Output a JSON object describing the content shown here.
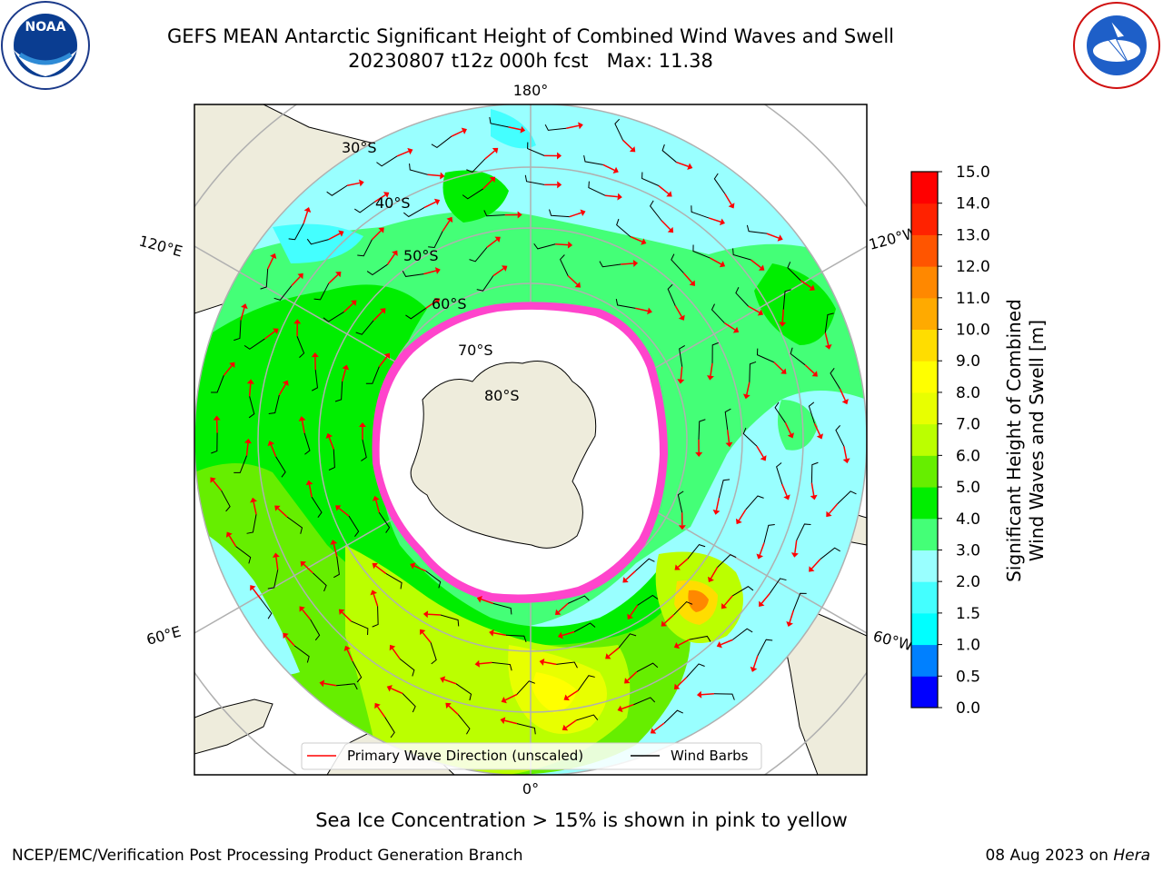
{
  "title": {
    "line1": "GEFS MEAN Antarctic Significant Height of Combined Wind Waves and Swell",
    "line2": "20230807 t12z 000h fcst   Max: 11.38"
  },
  "logos": {
    "noaa_text": "NOAA",
    "noaa_ring": "NATIONAL OCEANIC AND ATMOSPHERIC ADMINISTRATION · U.S. DEPARTMENT OF COMMERCE",
    "nws_ring": "NATIONAL WEATHER SERVICE"
  },
  "map": {
    "projection": "south-polar stereographic",
    "longitude_labels": {
      "top": "180°",
      "bottom": "0°",
      "left_upper": "120°E",
      "left_lower": "60°E",
      "right_upper": "120°W",
      "right_lower": "60°W"
    },
    "latitude_labels": [
      "30°S",
      "40°S",
      "50°S",
      "60°S",
      "70°S",
      "80°S"
    ],
    "legend": {
      "primary_wave": "Primary Wave Direction (unscaled)",
      "wind_barbs": "Wind Barbs"
    },
    "colors": {
      "land": "#eeecdc",
      "ocean_base": "#99ffff",
      "ice_edge": "#ff44cc",
      "arrow": "#ff0000",
      "barb": "#000000"
    }
  },
  "colorbar": {
    "label_line1": "Significant Height of Combined",
    "label_line2": "Wind Waves and Swell [m]",
    "ticks": [
      "0.0",
      "0.5",
      "1.0",
      "1.5",
      "2.0",
      "3.0",
      "4.0",
      "5.0",
      "6.0",
      "7.0",
      "8.0",
      "9.0",
      "10.0",
      "11.0",
      "12.0",
      "13.0",
      "14.0",
      "15.0"
    ],
    "colors": [
      "#0000ff",
      "#0080ff",
      "#00ffff",
      "#44ffff",
      "#99ffff",
      "#44ff77",
      "#00ee00",
      "#66ee00",
      "#bbff00",
      "#e8ff00",
      "#ffff00",
      "#ffdd00",
      "#ffaa00",
      "#ff8800",
      "#ff5500",
      "#ff2200",
      "#ff0000"
    ]
  },
  "caption": "Sea Ice Concentration > 15% is shown in pink to yellow",
  "footer": {
    "credit": "NCEP/EMC/Verification Post Processing Product Generation Branch",
    "date": "08 Aug 2023 on ",
    "host": "Hera"
  }
}
